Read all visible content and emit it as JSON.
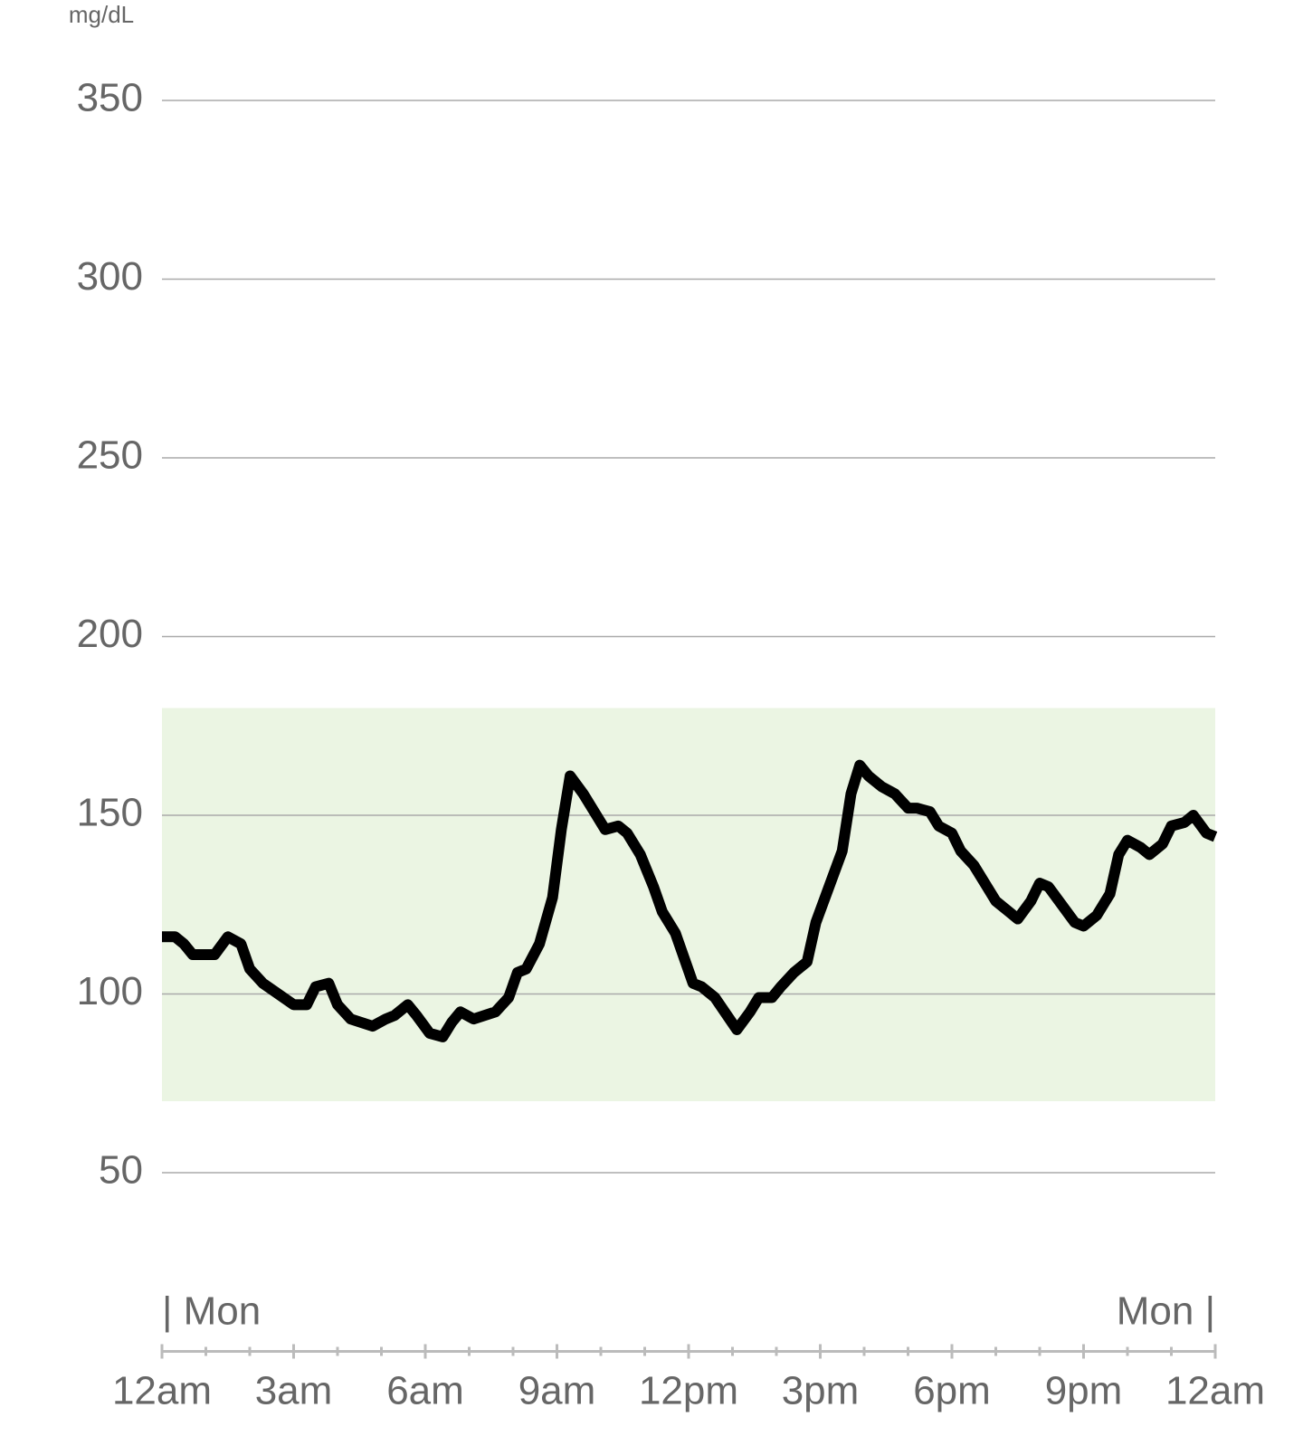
{
  "chart_data": {
    "type": "line",
    "y_unit": "mg/dL",
    "x": [
      0.0,
      0.3,
      0.5,
      0.7,
      1.2,
      1.5,
      1.8,
      2.0,
      2.3,
      3.0,
      3.3,
      3.5,
      3.8,
      4.0,
      4.3,
      4.8,
      5.1,
      5.3,
      5.6,
      5.8,
      6.1,
      6.4,
      6.6,
      6.8,
      7.1,
      7.6,
      7.9,
      8.1,
      8.3,
      8.6,
      8.9,
      9.1,
      9.3,
      9.6,
      9.9,
      10.1,
      10.4,
      10.6,
      10.9,
      11.2,
      11.4,
      11.7,
      12.1,
      12.3,
      12.6,
      13.1,
      13.4,
      13.6,
      13.9,
      14.1,
      14.4,
      14.7,
      14.9,
      15.2,
      15.5,
      15.7,
      15.9,
      16.1,
      16.4,
      16.7,
      17.0,
      17.2,
      17.5,
      17.7,
      18.0,
      18.2,
      18.5,
      18.8,
      19.0,
      19.3,
      19.5,
      19.8,
      20.0,
      20.2,
      20.5,
      20.8,
      21.0,
      21.3,
      21.6,
      21.8,
      22.0,
      22.3,
      22.5,
      22.8,
      23.0,
      23.3,
      23.5,
      23.8,
      24.0
    ],
    "series": [
      {
        "color": "#000000",
        "values": [
          116,
          116,
          114,
          111,
          111,
          116,
          114,
          107,
          103,
          97,
          97,
          102,
          103,
          97,
          93,
          91,
          93,
          94,
          97,
          94,
          89,
          88,
          92,
          95,
          93,
          95,
          99,
          106,
          107,
          114,
          127,
          146,
          161,
          156,
          150,
          146,
          147,
          145,
          139,
          130,
          123,
          117,
          103,
          102,
          99,
          90,
          95,
          99,
          99,
          102,
          106,
          109,
          120,
          130,
          140,
          156,
          164,
          161,
          158,
          156,
          152,
          152,
          151,
          147,
          145,
          140,
          136,
          130,
          126,
          123,
          121,
          126,
          131,
          130,
          125,
          120,
          119,
          122,
          128,
          139,
          143,
          141,
          139,
          142,
          147,
          148,
          150,
          145,
          144
        ]
      }
    ],
    "xlim": [
      0,
      24
    ],
    "xticks": [
      {
        "value": 0,
        "label": "12am"
      },
      {
        "value": 3,
        "label": "3am"
      },
      {
        "value": 6,
        "label": "6am"
      },
      {
        "value": 9,
        "label": "9am"
      },
      {
        "value": 12,
        "label": "12pm"
      },
      {
        "value": 15,
        "label": "3pm"
      },
      {
        "value": 18,
        "label": "6pm"
      },
      {
        "value": 21,
        "label": "9pm"
      },
      {
        "value": 24,
        "label": "12am"
      }
    ],
    "xminorticks": [
      1,
      2,
      4,
      5,
      7,
      8,
      10,
      11,
      13,
      14,
      16,
      17,
      19,
      20,
      22,
      23
    ],
    "day_labels": [
      {
        "value": 0,
        "label": "| Mon"
      },
      {
        "value": 24,
        "label": "Mon |"
      }
    ],
    "ylim": [
      0,
      350
    ],
    "yticks": [
      50,
      100,
      150,
      200,
      250,
      300,
      350
    ],
    "grid": true,
    "target_range": {
      "range": [
        70,
        180
      ],
      "color": "#ebf5e3"
    }
  }
}
